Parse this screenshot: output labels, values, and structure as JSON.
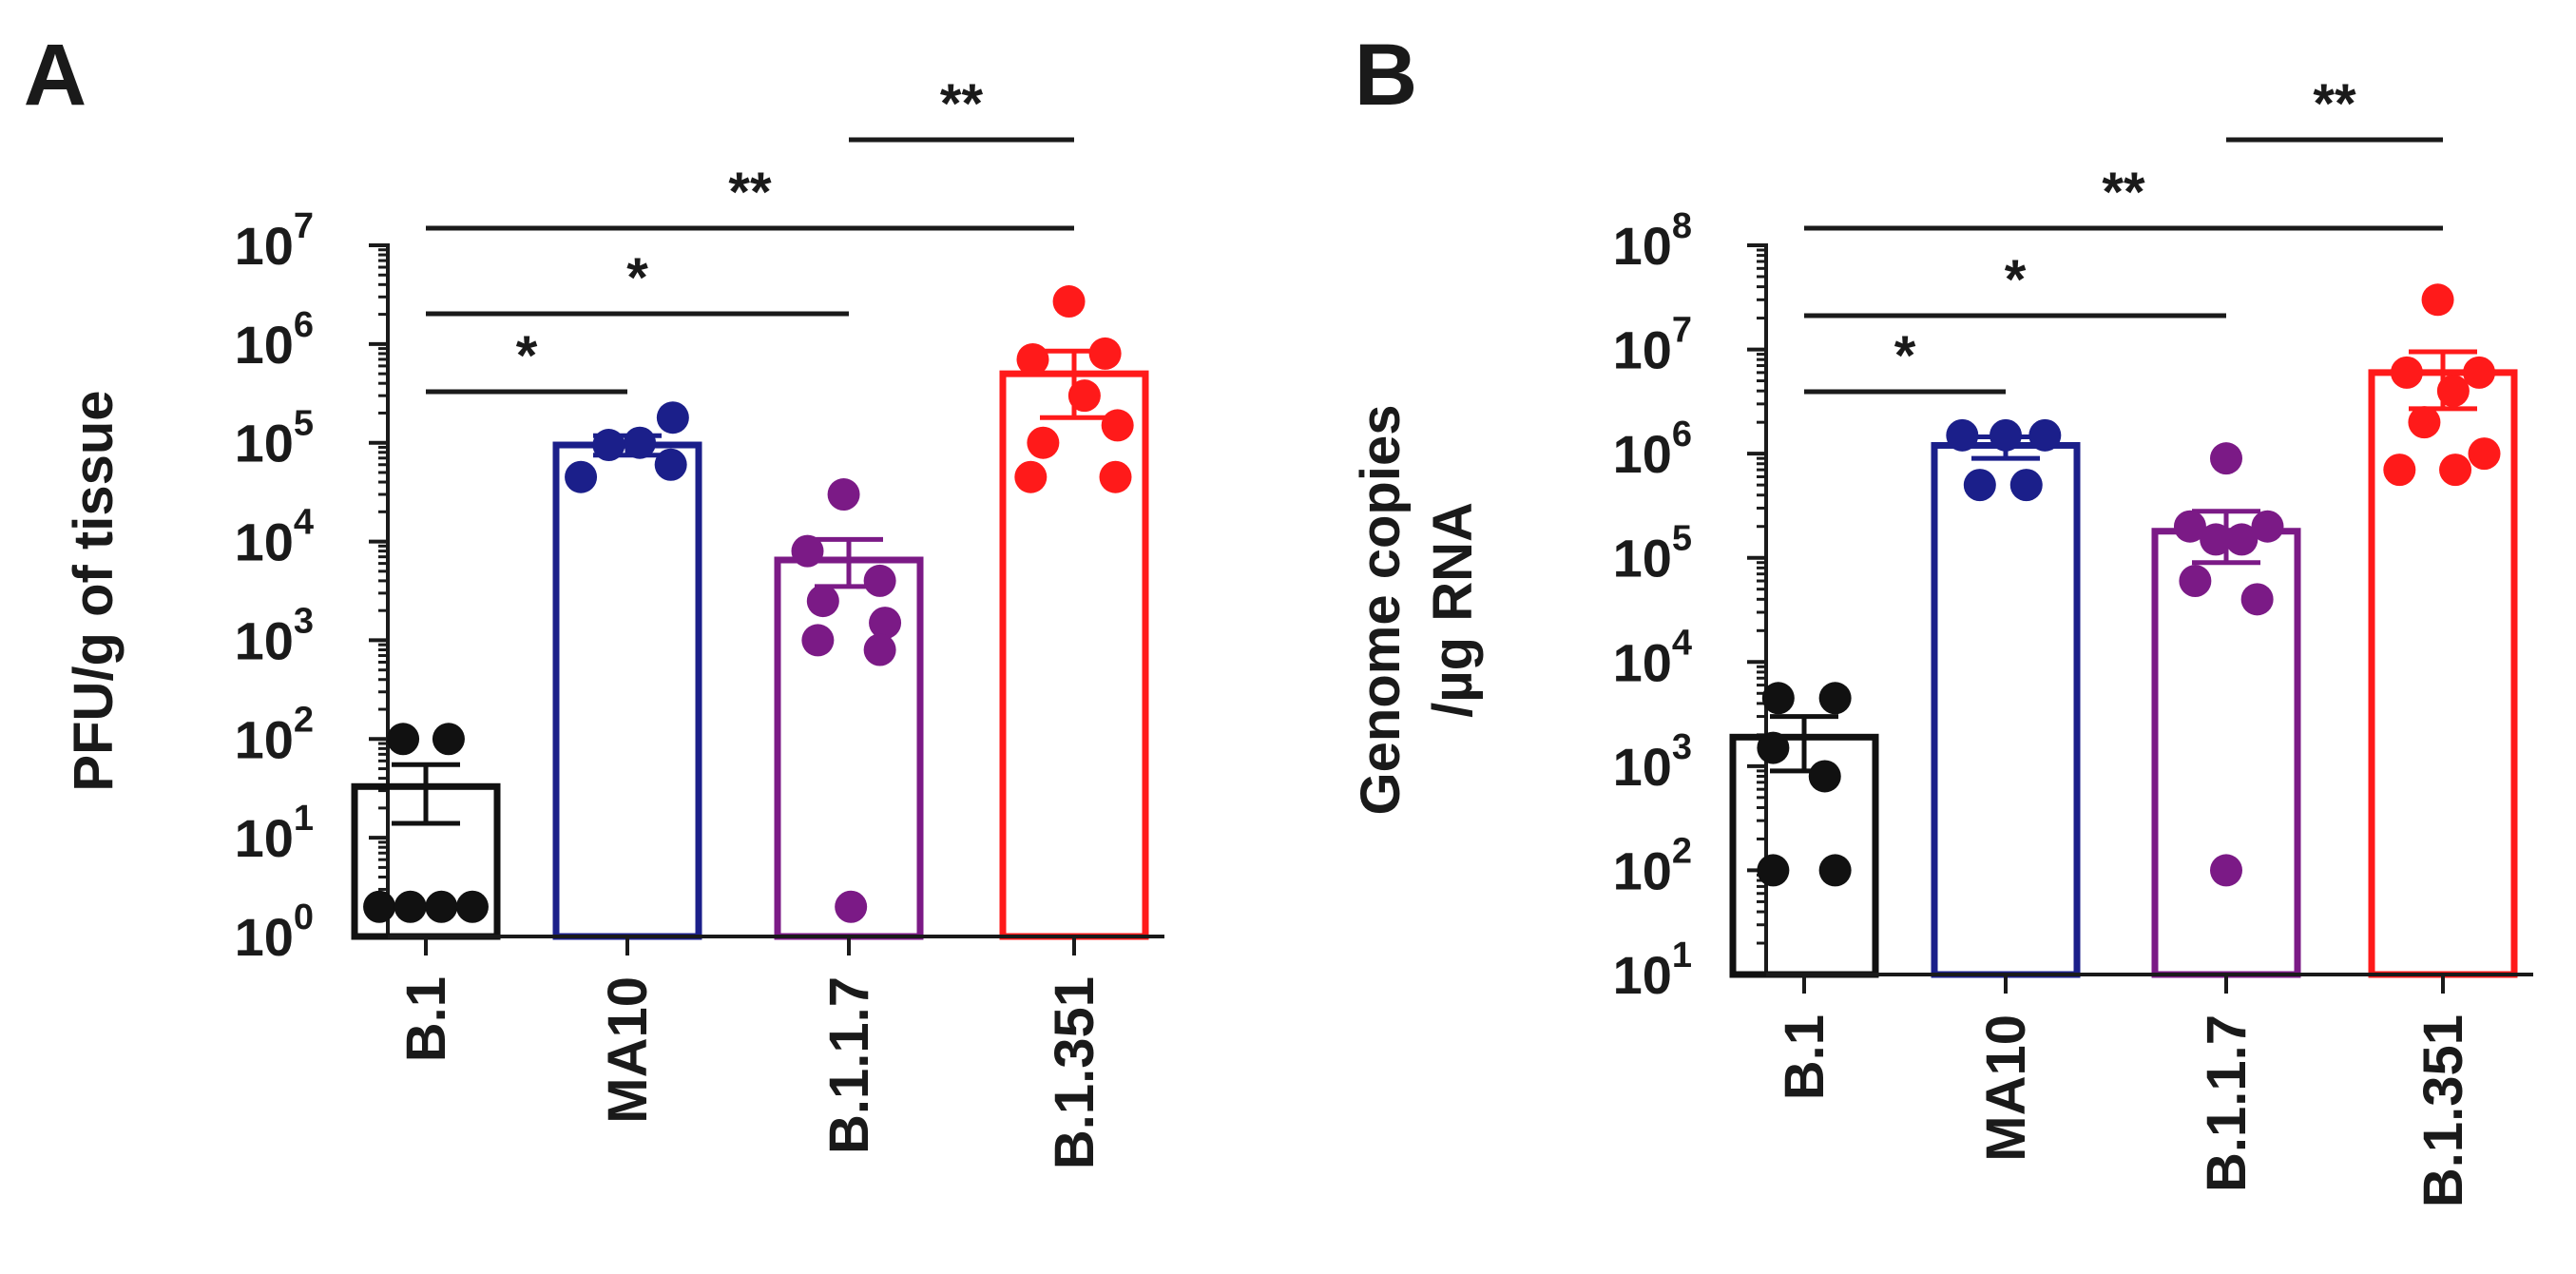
{
  "chart_data": [
    {
      "panel_label": "A",
      "type": "bar",
      "scale": "log10",
      "ylabel": "PFU/g of tissue",
      "ylabel_lines": [
        "PFU/g of tissue"
      ],
      "ylim_exp": [
        0,
        7
      ],
      "ytick_exps": [
        "0",
        "1",
        "2",
        "3",
        "4",
        "5",
        "6",
        "7"
      ],
      "categories": [
        "B.1",
        "MA10",
        "B.1.1.7",
        "B.1.351"
      ],
      "colors": [
        "#111111",
        "#1b1f8a",
        "#7b1a86",
        "#ff1a1a"
      ],
      "means": [
        33,
        95000,
        6500,
        500000
      ],
      "sem": [
        [
          14,
          55
        ],
        [
          75000,
          118000
        ],
        [
          3500,
          10500
        ],
        [
          180000,
          850000
        ]
      ],
      "points": [
        [
          [
            -0.45,
            2
          ],
          [
            -0.15,
            2
          ],
          [
            0.15,
            2
          ],
          [
            0.45,
            2
          ],
          [
            -0.22,
            100
          ],
          [
            0.22,
            100
          ]
        ],
        [
          [
            -0.45,
            45000
          ],
          [
            -0.18,
            95000
          ],
          [
            0.12,
            100000
          ],
          [
            0.42,
            60000
          ],
          [
            0.44,
            180000
          ]
        ],
        [
          [
            -0.4,
            8000
          ],
          [
            -0.05,
            30000
          ],
          [
            0.3,
            4000
          ],
          [
            -0.25,
            2500
          ],
          [
            0.35,
            1500
          ],
          [
            -0.3,
            1000
          ],
          [
            0.3,
            800
          ],
          [
            0.02,
            2
          ]
        ],
        [
          [
            -0.05,
            2700000
          ],
          [
            -0.4,
            700000
          ],
          [
            0.3,
            800000
          ],
          [
            0.1,
            300000
          ],
          [
            0.42,
            150000
          ],
          [
            -0.3,
            100000
          ],
          [
            -0.42,
            45000
          ],
          [
            0.4,
            45000
          ]
        ]
      ],
      "significance": [
        {
          "from": 0,
          "to": 1,
          "label": "*"
        },
        {
          "from": 0,
          "to": 2,
          "label": "*"
        },
        {
          "from": 0,
          "to": 3,
          "label": "**"
        },
        {
          "from": 2,
          "to": 3,
          "label": "**"
        }
      ]
    },
    {
      "panel_label": "B",
      "type": "bar",
      "scale": "log10",
      "ylabel": "Genome copies /µg RNA",
      "ylabel_lines": [
        "Genome copies",
        "/µg RNA"
      ],
      "ylim_exp": [
        1,
        8
      ],
      "ytick_exps": [
        "1",
        "2",
        "3",
        "4",
        "5",
        "6",
        "7",
        "8"
      ],
      "categories": [
        "B.1",
        "MA10",
        "B.1.1.7",
        "B.1.351"
      ],
      "colors": [
        "#111111",
        "#1b1f8a",
        "#7b1a86",
        "#ff1a1a"
      ],
      "means": [
        1900,
        1200000,
        180000,
        6000000
      ],
      "sem": [
        [
          900,
          3000
        ],
        [
          900000,
          1450000
        ],
        [
          90000,
          280000
        ],
        [
          2700000,
          9500000
        ]
      ],
      "points": [
        [
          [
            -0.25,
            4500
          ],
          [
            0.3,
            4500
          ],
          [
            -0.3,
            1500
          ],
          [
            0.2,
            800
          ],
          [
            -0.3,
            100
          ],
          [
            0.3,
            100
          ]
        ],
        [
          [
            -0.42,
            1500000
          ],
          [
            0.0,
            1500000
          ],
          [
            0.38,
            1500000
          ],
          [
            -0.25,
            500000
          ],
          [
            0.2,
            500000
          ]
        ],
        [
          [
            0.0,
            900000
          ],
          [
            -0.35,
            200000
          ],
          [
            0.4,
            200000
          ],
          [
            -0.1,
            150000
          ],
          [
            0.15,
            150000
          ],
          [
            -0.3,
            60000
          ],
          [
            0.3,
            40000
          ],
          [
            0.0,
            100
          ]
        ],
        [
          [
            -0.05,
            30000000
          ],
          [
            -0.35,
            6000000
          ],
          [
            0.35,
            6000000
          ],
          [
            0.1,
            4000000
          ],
          [
            -0.18,
            2000000
          ],
          [
            0.4,
            1000000
          ],
          [
            -0.42,
            700000
          ],
          [
            0.12,
            700000
          ]
        ]
      ],
      "significance": [
        {
          "from": 0,
          "to": 1,
          "label": "*"
        },
        {
          "from": 0,
          "to": 2,
          "label": "*"
        },
        {
          "from": 0,
          "to": 3,
          "label": "**"
        },
        {
          "from": 2,
          "to": 3,
          "label": "**"
        }
      ]
    }
  ]
}
